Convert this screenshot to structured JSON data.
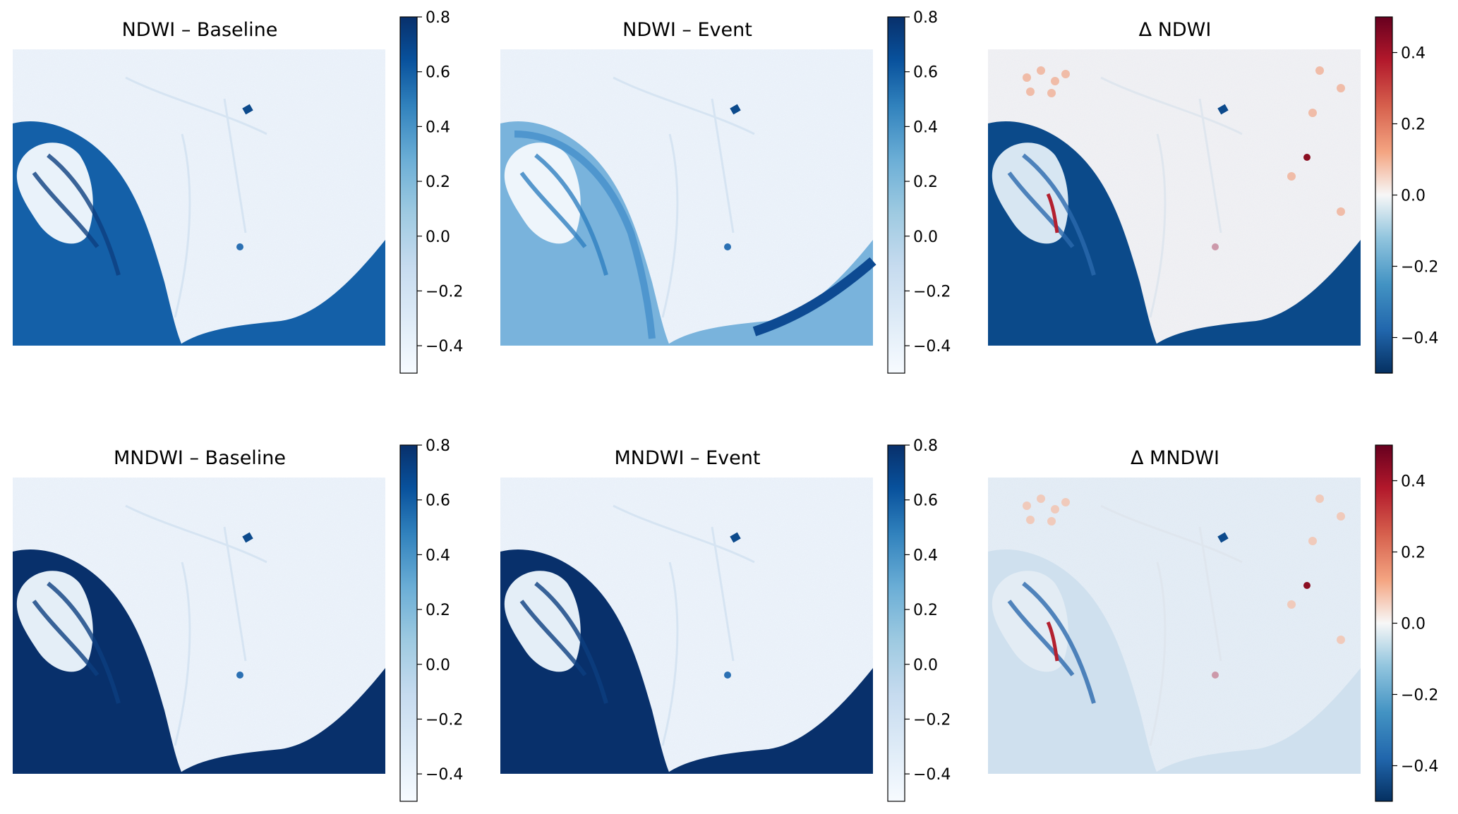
{
  "figure": {
    "panels": [
      {
        "id": "ndwi-baseline",
        "title": "NDWI – Baseline",
        "kind": "index",
        "colormap": "Blues",
        "vmin": -0.5,
        "vmax": 0.8,
        "colorbar_ticks": [
          "0.8",
          "0.6",
          "0.4",
          "0.2",
          "0.0",
          "−0.2",
          "−0.4"
        ]
      },
      {
        "id": "ndwi-event",
        "title": "NDWI – Event",
        "kind": "index",
        "colormap": "Blues",
        "vmin": -0.5,
        "vmax": 0.8,
        "colorbar_ticks": [
          "0.8",
          "0.6",
          "0.4",
          "0.2",
          "0.0",
          "−0.2",
          "−0.4"
        ]
      },
      {
        "id": "delta-ndwi",
        "title": "Δ NDWI",
        "kind": "difference",
        "colormap": "RdBu_r",
        "vmin": -0.5,
        "vmax": 0.5,
        "colorbar_ticks": [
          "0.4",
          "0.2",
          "0.0",
          "−0.2",
          "−0.4"
        ]
      },
      {
        "id": "mndwi-baseline",
        "title": "MNDWI – Baseline",
        "kind": "index",
        "colormap": "Blues",
        "vmin": -0.5,
        "vmax": 0.8,
        "colorbar_ticks": [
          "0.8",
          "0.6",
          "0.4",
          "0.2",
          "0.0",
          "−0.2",
          "−0.4"
        ]
      },
      {
        "id": "mndwi-event",
        "title": "MNDWI – Event",
        "kind": "index",
        "colormap": "Blues",
        "vmin": -0.5,
        "vmax": 0.8,
        "colorbar_ticks": [
          "0.8",
          "0.6",
          "0.4",
          "0.2",
          "0.0",
          "−0.2",
          "−0.4"
        ]
      },
      {
        "id": "delta-mndwi",
        "title": "Δ MNDWI",
        "kind": "difference",
        "colormap": "RdBu_r",
        "vmin": -0.5,
        "vmax": 0.5,
        "colorbar_ticks": [
          "0.4",
          "0.2",
          "0.0",
          "−0.2",
          "−0.4"
        ]
      }
    ]
  },
  "chart_data": [
    {
      "type": "heatmap",
      "title": "NDWI – Baseline",
      "colormap": "Blues",
      "colorbar_range": [
        -0.5,
        0.8
      ],
      "colorbar_ticks": [
        0.8,
        0.6,
        0.4,
        0.2,
        0.0,
        -0.2,
        -0.4
      ]
    },
    {
      "type": "heatmap",
      "title": "NDWI – Event",
      "colormap": "Blues",
      "colorbar_range": [
        -0.5,
        0.8
      ],
      "colorbar_ticks": [
        0.8,
        0.6,
        0.4,
        0.2,
        0.0,
        -0.2,
        -0.4
      ]
    },
    {
      "type": "heatmap",
      "title": "Δ NDWI",
      "colormap": "RdBu_r",
      "colorbar_range": [
        -0.5,
        0.5
      ],
      "colorbar_ticks": [
        0.4,
        0.2,
        0.0,
        -0.2,
        -0.4
      ]
    },
    {
      "type": "heatmap",
      "title": "MNDWI – Baseline",
      "colormap": "Blues",
      "colorbar_range": [
        -0.5,
        0.8
      ],
      "colorbar_ticks": [
        0.8,
        0.6,
        0.4,
        0.2,
        0.0,
        -0.2,
        -0.4
      ]
    },
    {
      "type": "heatmap",
      "title": "MNDWI – Event",
      "colormap": "Blues",
      "colorbar_range": [
        -0.5,
        0.8
      ],
      "colorbar_ticks": [
        0.8,
        0.6,
        0.4,
        0.2,
        0.0,
        -0.2,
        -0.4
      ]
    },
    {
      "type": "heatmap",
      "title": "Δ MNDWI",
      "colormap": "RdBu_r",
      "colorbar_range": [
        -0.5,
        0.5
      ],
      "colorbar_ticks": [
        0.4,
        0.2,
        0.0,
        -0.2,
        -0.4
      ]
    }
  ],
  "colors": {
    "blues_low": "#f7fbff",
    "blues_mid": "#6aaed6",
    "blues_high": "#08306b",
    "rdbu_low": "#053061",
    "rdbu_mid": "#f7f7f7",
    "rdbu_high": "#67001f"
  }
}
